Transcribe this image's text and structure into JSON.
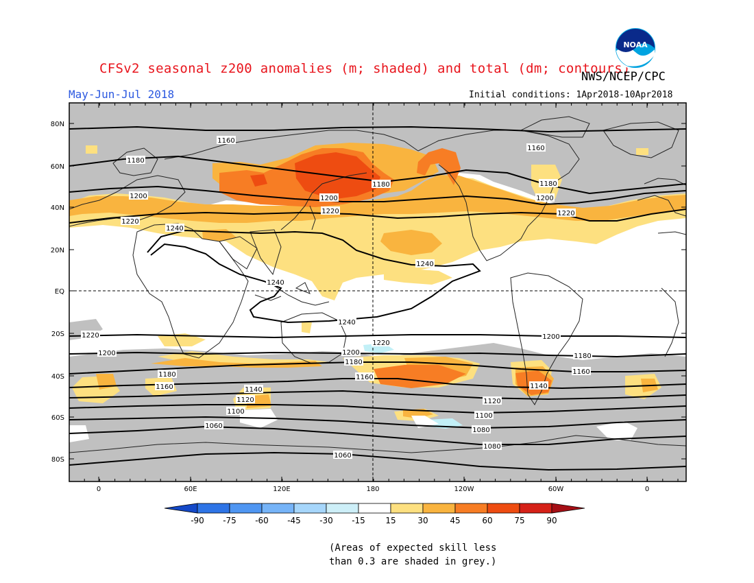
{
  "header": {
    "title": "CFSv2 seasonal z200 anomalies (m; shaded) and total (dm; contours)",
    "org": "NWS/NCEP/CPC",
    "logo_text": "NOAA",
    "period": "May-Jun-Jul 2018",
    "initial_conditions": "Initial conditions: 1Apr2018-10Apr2018"
  },
  "map": {
    "lat_labels": [
      "80N",
      "60N",
      "40N",
      "20N",
      "EQ",
      "20S",
      "40S",
      "60S",
      "80S"
    ],
    "lon_labels": [
      "0",
      "60E",
      "120E",
      "180",
      "120W",
      "60W",
      "0"
    ],
    "contour_labels": [
      "1160",
      "1160",
      "1180",
      "1180",
      "1180",
      "1200",
      "1200",
      "1200",
      "1220",
      "1220",
      "1220",
      "1240",
      "1240",
      "1240",
      "1240",
      "1220",
      "1220",
      "1200",
      "1200",
      "1200",
      "1180",
      "1180",
      "1180",
      "1160",
      "1160",
      "1160",
      "1140",
      "1140",
      "1120",
      "1120",
      "1100",
      "1100",
      "1080",
      "1060",
      "1080",
      "1060"
    ],
    "colors": {
      "skill_grey": "#c0c0c0",
      "pos15": "#fde080",
      "pos30": "#f9b43f",
      "pos45": "#f77d24",
      "pos60": "#ee4c11",
      "neg15": "#c2f0f7",
      "contour": "#000000",
      "coast": "#222222"
    }
  },
  "colorbar": {
    "ticks": [
      "-90",
      "-75",
      "-60",
      "-45",
      "-30",
      "-15",
      "15",
      "30",
      "45",
      "60",
      "75",
      "90"
    ],
    "colors": [
      "#1449c8",
      "#2e74e6",
      "#4f96f2",
      "#76b4f8",
      "#a6d6fb",
      "#cdeff8",
      "#ffffff",
      "#fde080",
      "#f9b43f",
      "#f77d24",
      "#ee4c11",
      "#d52118",
      "#a50f15"
    ]
  },
  "note": {
    "line1": "(Areas of expected skill less",
    "line2": "than 0.3 are shaded in grey.)"
  }
}
